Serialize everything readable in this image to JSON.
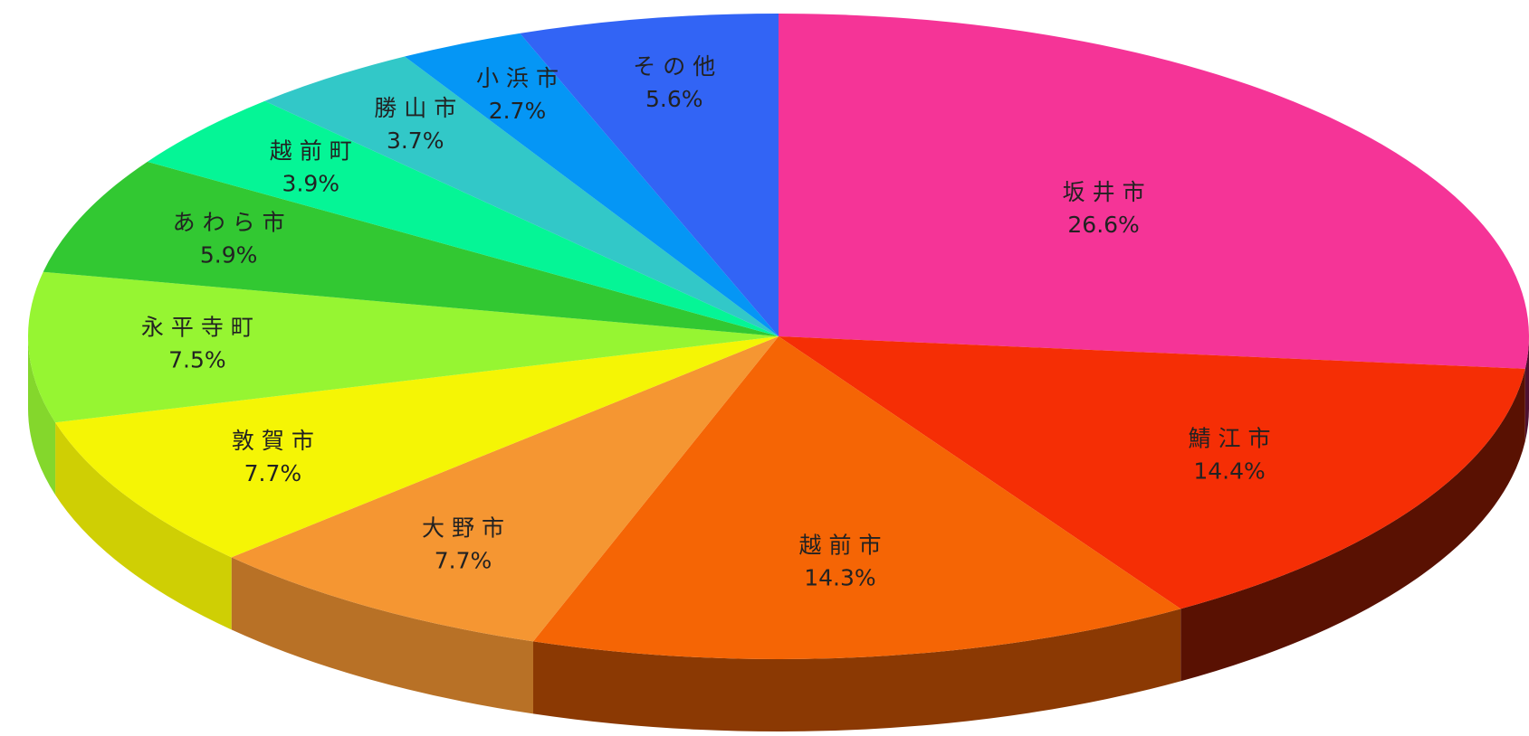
{
  "chart_data": {
    "type": "pie",
    "categories": [
      "坂井市",
      "鯖江市",
      "越前市",
      "大野市",
      "敦賀市",
      "永平寺町",
      "あわら市",
      "越前町",
      "勝山市",
      "小浜市",
      "その他"
    ],
    "values": [
      26.6,
      14.4,
      14.3,
      7.7,
      7.7,
      7.5,
      5.9,
      3.9,
      3.7,
      2.7,
      5.6
    ],
    "value_labels": [
      "26.6%",
      "14.4%",
      "14.3%",
      "7.7%",
      "7.7%",
      "7.5%",
      "5.9%",
      "3.9%",
      "3.7%",
      "2.7%",
      "5.6%"
    ],
    "colors": [
      "#f53497",
      "#f52e05",
      "#f56505",
      "#f59632",
      "#f5f505",
      "#96f532",
      "#32c832",
      "#05f596",
      "#32c8c8",
      "#0596f5",
      "#3264f5"
    ]
  }
}
